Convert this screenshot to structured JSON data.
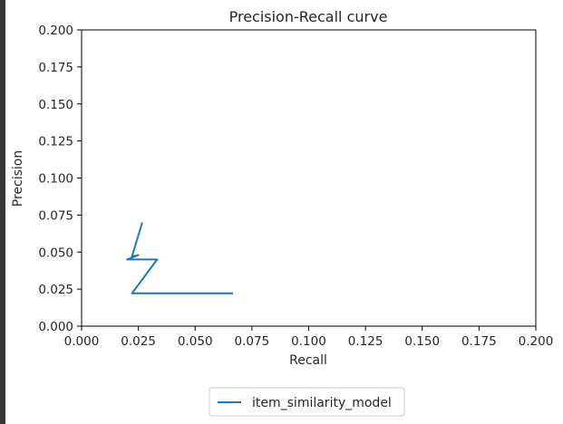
{
  "chart_data": {
    "type": "line",
    "title": "Precision-Recall curve",
    "xlabel": "Recall",
    "ylabel": "Precision",
    "xlim": [
      0.0,
      0.2
    ],
    "ylim": [
      0.0,
      0.2
    ],
    "xticks": [
      "0.000",
      "0.025",
      "0.050",
      "0.075",
      "0.100",
      "0.125",
      "0.150",
      "0.175",
      "0.200"
    ],
    "yticks": [
      "0.000",
      "0.025",
      "0.050",
      "0.075",
      "0.100",
      "0.125",
      "0.150",
      "0.175",
      "0.200"
    ],
    "grid": false,
    "legend_position": "bottom-center",
    "series": [
      {
        "name": "item_similarity_model",
        "color": "#1f77b4",
        "x": [
          0.0267,
          0.0222,
          0.025,
          0.02,
          0.0333,
          0.0222,
          0.0667
        ],
        "y": [
          0.07,
          0.047,
          0.048,
          0.045,
          0.045,
          0.0222,
          0.0222
        ]
      }
    ]
  }
}
